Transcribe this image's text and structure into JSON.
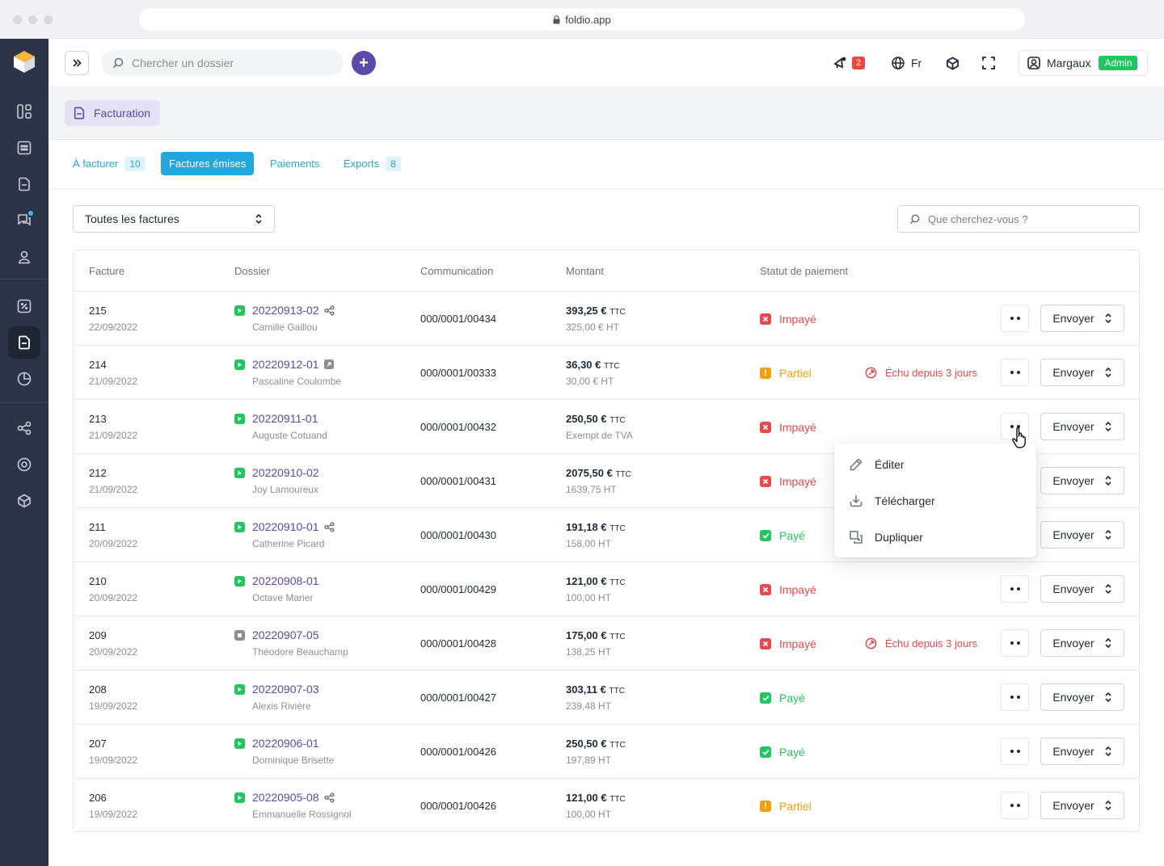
{
  "browser": {
    "url": "foldio.app"
  },
  "topbar": {
    "search_placeholder": "Chercher un dossier",
    "notifications_count": "2",
    "language": "Fr",
    "user_name": "Margaux",
    "user_role": "Admin"
  },
  "breadcrumb": {
    "label": "Facturation"
  },
  "tabs": [
    {
      "label": "À facturer",
      "count": "10"
    },
    {
      "label": "Factures émises",
      "count": ""
    },
    {
      "label": "Paiements",
      "count": ""
    },
    {
      "label": "Exports",
      "count": "8"
    }
  ],
  "filters": {
    "select_value": "Toutes les factures",
    "search_placeholder": "Que cherchez-vous ?"
  },
  "table": {
    "columns": [
      "Facture",
      "Dossier",
      "Communication",
      "Montant",
      "Statut de paiement"
    ],
    "send_label": "Envoyer",
    "rows": [
      {
        "num": "215",
        "date": "22/09/2022",
        "dossier": "20220913-02",
        "client": "Camille Gaillou",
        "comm": "000/0001/00434",
        "ttc": "393,25 €",
        "ttc_unit": "TTC",
        "ht": "325,00 € HT",
        "status": "Impayé",
        "status_type": "unpaid",
        "echu": "",
        "dossier_icon": "green",
        "extra_icon": "share"
      },
      {
        "num": "214",
        "date": "21/09/2022",
        "dossier": "20220912-01",
        "client": "Pascaline Coulombe",
        "comm": "000/0001/00333",
        "ttc": "36,30 €",
        "ttc_unit": "TTC",
        "ht": "30,00 € HT",
        "status": "Partiel",
        "status_type": "partial",
        "echu": "Échu depuis 3 jours",
        "dossier_icon": "green",
        "extra_icon": "external"
      },
      {
        "num": "213",
        "date": "21/09/2022",
        "dossier": "20220911-01",
        "client": "Auguste Cotuand",
        "comm": "000/0001/00432",
        "ttc": "250,50 €",
        "ttc_unit": "TTC",
        "ht": "Exempt de TVA",
        "status": "Impayé",
        "status_type": "unpaid",
        "echu": "",
        "dossier_icon": "green",
        "extra_icon": ""
      },
      {
        "num": "212",
        "date": "21/09/2022",
        "dossier": "20220910-02",
        "client": "Joy Lamoureux",
        "comm": "000/0001/00431",
        "ttc": "2075,50 €",
        "ttc_unit": "TTC",
        "ht": "1639,75 HT",
        "status": "Impayé",
        "status_type": "unpaid",
        "echu": "",
        "dossier_icon": "green",
        "extra_icon": ""
      },
      {
        "num": "211",
        "date": "20/09/2022",
        "dossier": "20220910-01",
        "client": "Catherine Picard",
        "comm": "000/0001/00430",
        "ttc": "191,18 €",
        "ttc_unit": "TTC",
        "ht": "158,00 HT",
        "status": "Payé",
        "status_type": "paid",
        "echu": "",
        "dossier_icon": "green",
        "extra_icon": "share"
      },
      {
        "num": "210",
        "date": "20/09/2022",
        "dossier": "20220908-01",
        "client": "Octave Marier",
        "comm": "000/0001/00429",
        "ttc": "121,00 €",
        "ttc_unit": "TTC",
        "ht": "100,00 HT",
        "status": "Impayé",
        "status_type": "unpaid",
        "echu": "",
        "dossier_icon": "green",
        "extra_icon": ""
      },
      {
        "num": "209",
        "date": "20/09/2022",
        "dossier": "20220907-05",
        "client": "Théodore Beauchamp",
        "comm": "000/0001/00428",
        "ttc": "175,00 €",
        "ttc_unit": "TTC",
        "ht": "138,25 HT",
        "status": "Impayé",
        "status_type": "unpaid",
        "echu": "Échu depuis 3 jours",
        "dossier_icon": "grey",
        "extra_icon": ""
      },
      {
        "num": "208",
        "date": "19/09/2022",
        "dossier": "20220907-03",
        "client": "Alexis Rivière",
        "comm": "000/0001/00427",
        "ttc": "303,11 €",
        "ttc_unit": "TTC",
        "ht": "239,48 HT",
        "status": "Payé",
        "status_type": "paid",
        "echu": "",
        "dossier_icon": "green",
        "extra_icon": ""
      },
      {
        "num": "207",
        "date": "19/09/2022",
        "dossier": "20220906-01",
        "client": "Dominique Brisette",
        "comm": "000/0001/00426",
        "ttc": "250,50 €",
        "ttc_unit": "TTC",
        "ht": "197,89 HT",
        "status": "Payé",
        "status_type": "paid",
        "echu": "",
        "dossier_icon": "green",
        "extra_icon": ""
      },
      {
        "num": "206",
        "date": "19/09/2022",
        "dossier": "20220905-08",
        "client": "Emmanuelle Rossignol",
        "comm": "000/0001/00426",
        "ttc": "121,00 €",
        "ttc_unit": "TTC",
        "ht": "100,00 HT",
        "status": "Partiel",
        "status_type": "partial",
        "echu": "",
        "dossier_icon": "green",
        "extra_icon": "share"
      }
    ]
  },
  "dropdown_menu": {
    "items": [
      {
        "label": "Éditer",
        "icon": "pencil-icon"
      },
      {
        "label": "Télécharger",
        "icon": "download-icon"
      },
      {
        "label": "Dupliquer",
        "icon": "duplicate-icon"
      }
    ]
  },
  "colors": {
    "primary": "#5b4aa8",
    "tab_active": "#22a7dc",
    "unpaid": "#e5484d",
    "partial": "#f59e0b",
    "paid": "#22c55e",
    "sidebar": "#2d3447"
  }
}
